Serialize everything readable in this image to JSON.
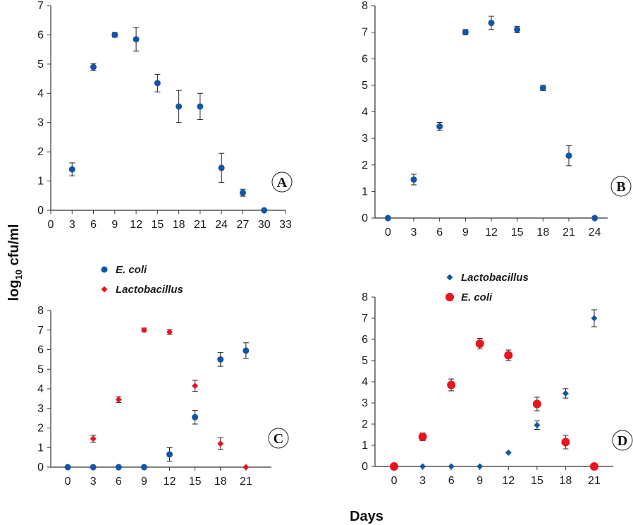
{
  "figure": {
    "ylabel_main": "log",
    "ylabel_sub": "10",
    "ylabel_rest": " cfu/ml",
    "xlabel": "Days"
  },
  "colors": {
    "ecoli": "#1155aa",
    "lacto_red": "#e8141e",
    "lacto_blue": "#1155aa",
    "axis": "#333333"
  },
  "chart_data": [
    {
      "type": "scatter",
      "title": "A",
      "xlabel": "",
      "ylabel": "",
      "xlim": [
        0,
        33
      ],
      "ylim": [
        0,
        7
      ],
      "xticks": [
        0,
        3,
        6,
        9,
        12,
        15,
        18,
        21,
        24,
        27,
        30,
        33
      ],
      "yticks": [
        0,
        1,
        2,
        3,
        4,
        5,
        6,
        7
      ],
      "series": [
        {
          "name": "E. coli",
          "marker": "circle",
          "color": "#1155aa",
          "x": [
            3,
            6,
            9,
            12,
            15,
            18,
            21,
            24,
            27,
            30
          ],
          "y": [
            1.4,
            4.9,
            6.0,
            5.85,
            4.35,
            3.55,
            3.55,
            1.45,
            0.6,
            0
          ],
          "err": [
            0.22,
            0.12,
            0.08,
            0.4,
            0.3,
            0.55,
            0.45,
            0.5,
            0.12,
            0
          ]
        }
      ]
    },
    {
      "type": "scatter",
      "title": "B",
      "xlabel": "",
      "ylabel": "",
      "xlim": [
        -1.5,
        25.5
      ],
      "ylim": [
        0,
        8
      ],
      "xticks": [
        0,
        3,
        6,
        9,
        12,
        15,
        18,
        21,
        24
      ],
      "yticks": [
        0,
        1,
        2,
        3,
        4,
        5,
        6,
        7,
        8
      ],
      "series": [
        {
          "name": "E. coli",
          "marker": "circle",
          "color": "#1155aa",
          "x": [
            0,
            3,
            6,
            9,
            12,
            15,
            18,
            21,
            24
          ],
          "y": [
            0,
            1.45,
            3.45,
            7.0,
            7.35,
            7.1,
            4.9,
            2.35,
            0
          ],
          "err": [
            0,
            0.2,
            0.15,
            0.1,
            0.25,
            0.12,
            0.1,
            0.38,
            0
          ]
        }
      ]
    },
    {
      "type": "scatter",
      "title": "C",
      "xlabel": "",
      "ylabel": "",
      "xlim": [
        -2,
        24
      ],
      "ylim": [
        0,
        8
      ],
      "xticks": [
        0,
        3,
        6,
        9,
        12,
        15,
        18,
        21
      ],
      "yticks": [
        0,
        1,
        2,
        3,
        4,
        5,
        6,
        7,
        8
      ],
      "legend": [
        "E. coli",
        "Lactobacillus"
      ],
      "series": [
        {
          "name": "E. coli",
          "marker": "circle",
          "color": "#1155aa",
          "x": [
            0,
            3,
            6,
            9,
            12,
            15,
            18,
            21
          ],
          "y": [
            0,
            0,
            0,
            0,
            0.65,
            2.55,
            5.5,
            5.95
          ],
          "err": [
            0,
            0,
            0,
            0,
            0.35,
            0.35,
            0.35,
            0.4
          ]
        },
        {
          "name": "Lactobacillus",
          "marker": "diamond",
          "color": "#e8141e",
          "x": [
            3,
            6,
            9,
            12,
            15,
            18,
            21
          ],
          "y": [
            1.45,
            3.45,
            7.0,
            6.9,
            4.15,
            1.2,
            0
          ],
          "err": [
            0.18,
            0.15,
            0.1,
            0.12,
            0.28,
            0.3,
            0
          ]
        }
      ]
    },
    {
      "type": "scatter",
      "title": "D",
      "xlabel": "",
      "ylabel": "",
      "xlim": [
        -2,
        23
      ],
      "ylim": [
        0,
        8
      ],
      "xticks": [
        0,
        3,
        6,
        9,
        12,
        15,
        18,
        21
      ],
      "yticks": [
        0,
        1,
        2,
        3,
        4,
        5,
        6,
        7,
        8
      ],
      "legend": [
        "Lactobacillus",
        "E. coli"
      ],
      "series": [
        {
          "name": "Lactobacillus",
          "marker": "diamond",
          "color": "#1155aa",
          "x": [
            3,
            6,
            9,
            12,
            15,
            18,
            21
          ],
          "y": [
            0,
            0,
            0,
            0.65,
            1.95,
            3.45,
            7.0
          ],
          "err": [
            0,
            0,
            0,
            0,
            0.2,
            0.22,
            0.4
          ]
        },
        {
          "name": "E. coli",
          "marker": "circle-large",
          "color": "#e8141e",
          "x": [
            0,
            3,
            6,
            9,
            12,
            15,
            18,
            21
          ],
          "y": [
            0,
            1.4,
            3.85,
            5.8,
            5.25,
            2.95,
            1.15,
            0
          ],
          "err": [
            0,
            0.18,
            0.28,
            0.25,
            0.25,
            0.32,
            0.32,
            0
          ]
        }
      ]
    }
  ]
}
